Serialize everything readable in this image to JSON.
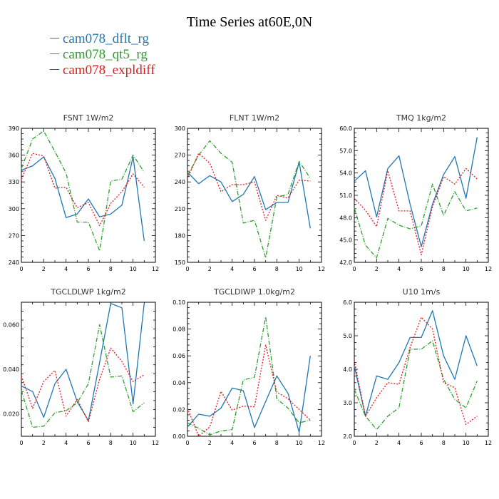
{
  "page_title": "Time Series at60E,0N",
  "colors": {
    "series": [
      "#1f77b4",
      "#2ca02c",
      "#e41a1c"
    ]
  },
  "legend": [
    "cam078_dflt_rg",
    "cam078_qt5_rg",
    "cam078_expldiff"
  ],
  "chart_data": [
    {
      "type": "line",
      "title": "FSNT   1W/m2",
      "x": [
        0,
        1,
        2,
        3,
        4,
        5,
        6,
        7,
        8,
        9,
        10,
        11
      ],
      "xlim": [
        0,
        12
      ],
      "xticks": [
        0,
        2,
        4,
        6,
        8,
        10,
        12
      ],
      "ylim": [
        240,
        390
      ],
      "yticks": [
        240,
        270,
        300,
        330,
        360,
        390
      ],
      "ytick_labels": [
        "240",
        "270",
        "300",
        "330",
        "360",
        "390"
      ],
      "series": [
        {
          "name": "cam078_dflt_rg",
          "values": [
            343,
            348,
            358,
            334,
            290,
            294,
            311,
            291,
            294,
            304,
            358,
            264
          ]
        },
        {
          "name": "cam078_qt5_rg",
          "values": [
            345,
            378,
            387,
            364,
            340,
            285,
            285,
            253,
            331,
            333,
            360,
            341
          ]
        },
        {
          "name": "cam078_expldiff",
          "values": [
            333,
            362,
            359,
            323,
            324,
            301,
            307,
            281,
            306,
            319,
            339,
            324
          ]
        }
      ]
    },
    {
      "type": "line",
      "title": "FLNT   1W/m2",
      "x": [
        0,
        1,
        2,
        3,
        4,
        5,
        6,
        7,
        8,
        9,
        10,
        11
      ],
      "xlim": [
        0,
        12
      ],
      "xticks": [
        0,
        2,
        4,
        6,
        8,
        10,
        12
      ],
      "ylim": [
        150,
        300
      ],
      "yticks": [
        150,
        180,
        210,
        240,
        270,
        300
      ],
      "ytick_labels": [
        "150",
        "180",
        "210",
        "240",
        "270",
        "300"
      ],
      "series": [
        {
          "name": "cam078_dflt_rg",
          "values": [
            251,
            238,
            247,
            240,
            218,
            226,
            246,
            209,
            217,
            217,
            262,
            188
          ]
        },
        {
          "name": "cam078_qt5_rg",
          "values": [
            247,
            270,
            286,
            272,
            262,
            194,
            197,
            155,
            223,
            226,
            263,
            244
          ]
        },
        {
          "name": "cam078_expldiff",
          "values": [
            244,
            272,
            261,
            229,
            237,
            237,
            240,
            197,
            225,
            222,
            242,
            241
          ]
        }
      ]
    },
    {
      "type": "line",
      "title": "TMQ   1kg/m2",
      "x": [
        0,
        1,
        2,
        3,
        4,
        5,
        6,
        7,
        8,
        9,
        10,
        11
      ],
      "xlim": [
        0,
        12
      ],
      "xticks": [
        0,
        2,
        4,
        6,
        8,
        10,
        12
      ],
      "ylim": [
        42,
        60
      ],
      "yticks": [
        42,
        45,
        48,
        51,
        54,
        57,
        60
      ],
      "ytick_labels": [
        "42.0",
        "45.0",
        "48.0",
        "51.0",
        "54.0",
        "57.0",
        "60.0"
      ],
      "series": [
        {
          "name": "cam078_dflt_rg",
          "values": [
            52.9,
            54.3,
            48.1,
            54.6,
            56.3,
            49.8,
            44.1,
            49.8,
            53.8,
            56.2,
            50.6,
            58.8
          ]
        },
        {
          "name": "cam078_qt5_rg",
          "values": [
            49.3,
            44.3,
            42.6,
            47.9,
            47.0,
            46.5,
            46.9,
            52.5,
            48.3,
            51.5,
            48.9,
            49.3
          ]
        },
        {
          "name": "cam078_expldiff",
          "values": [
            50.6,
            49.0,
            46.8,
            54.3,
            48.9,
            48.9,
            43.0,
            49.5,
            53.5,
            52.5,
            54.6,
            53.2
          ]
        }
      ]
    },
    {
      "type": "line",
      "title": "TGCLDLWP   1kg/m2",
      "x": [
        0,
        1,
        2,
        3,
        4,
        5,
        6,
        7,
        8,
        9,
        10,
        11
      ],
      "xlim": [
        0,
        12
      ],
      "xticks": [
        0,
        2,
        4,
        6,
        8,
        10,
        12
      ],
      "ylim": [
        0.01,
        0.07
      ],
      "yticks": [
        0.02,
        0.04,
        0.06
      ],
      "ytick_labels": [
        "0.020",
        "0.040",
        "0.060"
      ],
      "series": [
        {
          "name": "cam078_dflt_rg",
          "values": [
            0.0325,
            0.03,
            0.0185,
            0.0335,
            0.04,
            0.0255,
            0.017,
            0.043,
            0.0695,
            0.0675,
            0.0245,
            0.0695
          ]
        },
        {
          "name": "cam078_qt5_rg",
          "values": [
            0.0305,
            0.014,
            0.0145,
            0.0205,
            0.0215,
            0.025,
            0.0335,
            0.06,
            0.0365,
            0.037,
            0.021,
            0.025
          ]
        },
        {
          "name": "cam078_expldiff",
          "values": [
            0.037,
            0.0225,
            0.0345,
            0.0395,
            0.019,
            0.0265,
            0.0165,
            0.0355,
            0.0495,
            0.0435,
            0.0345,
            0.0375
          ]
        }
      ]
    },
    {
      "type": "line",
      "title": "TGCLDIWP   1.0kg/m2",
      "x": [
        0,
        1,
        2,
        3,
        4,
        5,
        6,
        7,
        8,
        9,
        10,
        11
      ],
      "xlim": [
        0,
        12
      ],
      "xticks": [
        0,
        2,
        4,
        6,
        8,
        10,
        12
      ],
      "ylim": [
        0,
        0.1
      ],
      "yticks": [
        0,
        0.02,
        0.04,
        0.06,
        0.08,
        0.1
      ],
      "ytick_labels": [
        "0.00",
        "0.02",
        "0.04",
        "0.06",
        "0.08",
        "0.10"
      ],
      "series": [
        {
          "name": "cam078_dflt_rg",
          "values": [
            0.007,
            0.0165,
            0.015,
            0.021,
            0.036,
            0.034,
            0.0065,
            0.026,
            0.045,
            0.032,
            0.003,
            0.06
          ]
        },
        {
          "name": "cam078_qt5_rg",
          "values": [
            0.01,
            0.006,
            0.001,
            0.004,
            0.005,
            0.042,
            0.044,
            0.089,
            0.028,
            0.021,
            0.01,
            0.012
          ]
        },
        {
          "name": "cam078_expldiff",
          "values": [
            0.021,
            0.0,
            0.007,
            0.0335,
            0.0195,
            0.0225,
            0.022,
            0.068,
            0.033,
            0.028,
            0.02,
            0.012
          ]
        }
      ]
    },
    {
      "type": "line",
      "title": "U10   1m/s",
      "x": [
        0,
        1,
        2,
        3,
        4,
        5,
        6,
        7,
        8,
        9,
        10,
        11
      ],
      "xlim": [
        0,
        12
      ],
      "xticks": [
        0,
        2,
        4,
        6,
        8,
        10,
        12
      ],
      "ylim": [
        2,
        6
      ],
      "yticks": [
        2,
        3,
        4,
        5,
        6
      ],
      "ytick_labels": [
        "2.0",
        "3.0",
        "4.0",
        "5.0",
        "6.0"
      ],
      "series": [
        {
          "name": "cam078_dflt_rg",
          "values": [
            4.1,
            2.6,
            3.8,
            3.7,
            4.2,
            4.95,
            4.95,
            5.75,
            4.4,
            3.7,
            5.0,
            4.1
          ]
        },
        {
          "name": "cam078_qt5_rg",
          "values": [
            3.4,
            2.6,
            2.2,
            2.6,
            2.85,
            4.6,
            4.6,
            4.85,
            3.7,
            3.1,
            2.85,
            3.65
          ]
        },
        {
          "name": "cam078_expldiff",
          "values": [
            4.25,
            2.6,
            3.15,
            3.6,
            3.55,
            4.65,
            5.55,
            5.2,
            3.6,
            3.45,
            2.35,
            2.6
          ]
        }
      ]
    }
  ]
}
